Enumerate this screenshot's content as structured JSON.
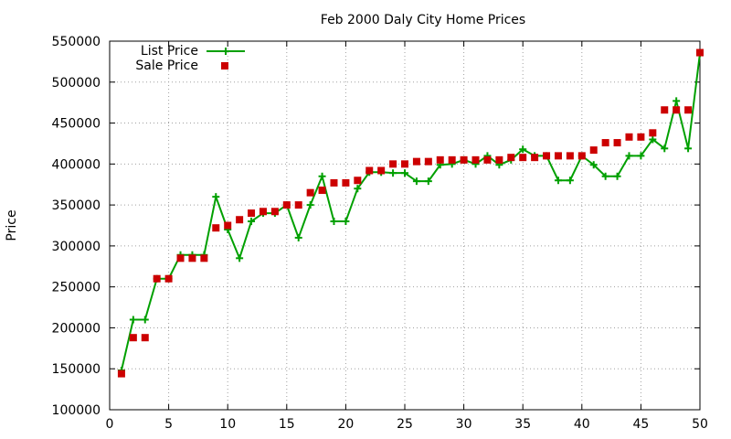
{
  "chart_data": {
    "type": "line",
    "title": "Feb 2000 Daly City Home Prices",
    "xlabel": "",
    "ylabel": "Price",
    "xlim": [
      0,
      50
    ],
    "ylim": [
      100000,
      550000
    ],
    "xticks": [
      0,
      5,
      10,
      15,
      20,
      25,
      30,
      35,
      40,
      45,
      50
    ],
    "yticks": [
      100000,
      150000,
      200000,
      250000,
      300000,
      350000,
      400000,
      450000,
      500000,
      550000
    ],
    "grid": true,
    "legend_position": "top-left",
    "series": [
      {
        "name": "List Price",
        "style": "line-with-plus-markers",
        "color": "#00a000",
        "x": [
          1,
          2,
          3,
          4,
          5,
          6,
          7,
          8,
          9,
          10,
          11,
          12,
          13,
          14,
          15,
          16,
          17,
          18,
          19,
          20,
          21,
          22,
          23,
          24,
          25,
          26,
          27,
          28,
          29,
          30,
          31,
          32,
          33,
          34,
          35,
          36,
          37,
          38,
          39,
          40,
          41,
          42,
          43,
          44,
          45,
          46,
          47,
          48,
          49,
          50
        ],
        "y": [
          148000,
          210000,
          210000,
          260000,
          260000,
          289000,
          289000,
          289000,
          360000,
          320000,
          285000,
          330000,
          340000,
          340000,
          350000,
          310000,
          350000,
          385000,
          330000,
          330000,
          370000,
          390000,
          390000,
          389000,
          389000,
          379000,
          379000,
          399000,
          400000,
          405000,
          400000,
          410000,
          399000,
          405000,
          418000,
          410000,
          410000,
          380000,
          380000,
          410000,
          399000,
          385000,
          385000,
          410000,
          410000,
          430000,
          419000,
          477000,
          419000,
          535000
        ]
      },
      {
        "name": "Sale Price",
        "style": "square-markers",
        "color": "#cc0000",
        "x": [
          1,
          2,
          3,
          4,
          5,
          6,
          7,
          8,
          9,
          10,
          11,
          12,
          13,
          14,
          15,
          16,
          17,
          18,
          19,
          20,
          21,
          22,
          23,
          24,
          25,
          26,
          27,
          28,
          29,
          30,
          31,
          32,
          33,
          34,
          35,
          36,
          37,
          38,
          39,
          40,
          41,
          42,
          43,
          44,
          45,
          46,
          47,
          48,
          49,
          50
        ],
        "y": [
          144000,
          188000,
          188000,
          260000,
          260000,
          285000,
          285000,
          285000,
          322000,
          325000,
          332000,
          340000,
          342000,
          342000,
          350000,
          350000,
          365000,
          368000,
          377000,
          377000,
          380000,
          392000,
          392000,
          400000,
          400000,
          403000,
          403000,
          405000,
          405000,
          405000,
          405000,
          405000,
          405000,
          408000,
          408000,
          408000,
          410000,
          410000,
          410000,
          410000,
          417000,
          426000,
          426000,
          433000,
          433000,
          438000,
          466000,
          466000,
          466000,
          536000
        ]
      }
    ]
  }
}
